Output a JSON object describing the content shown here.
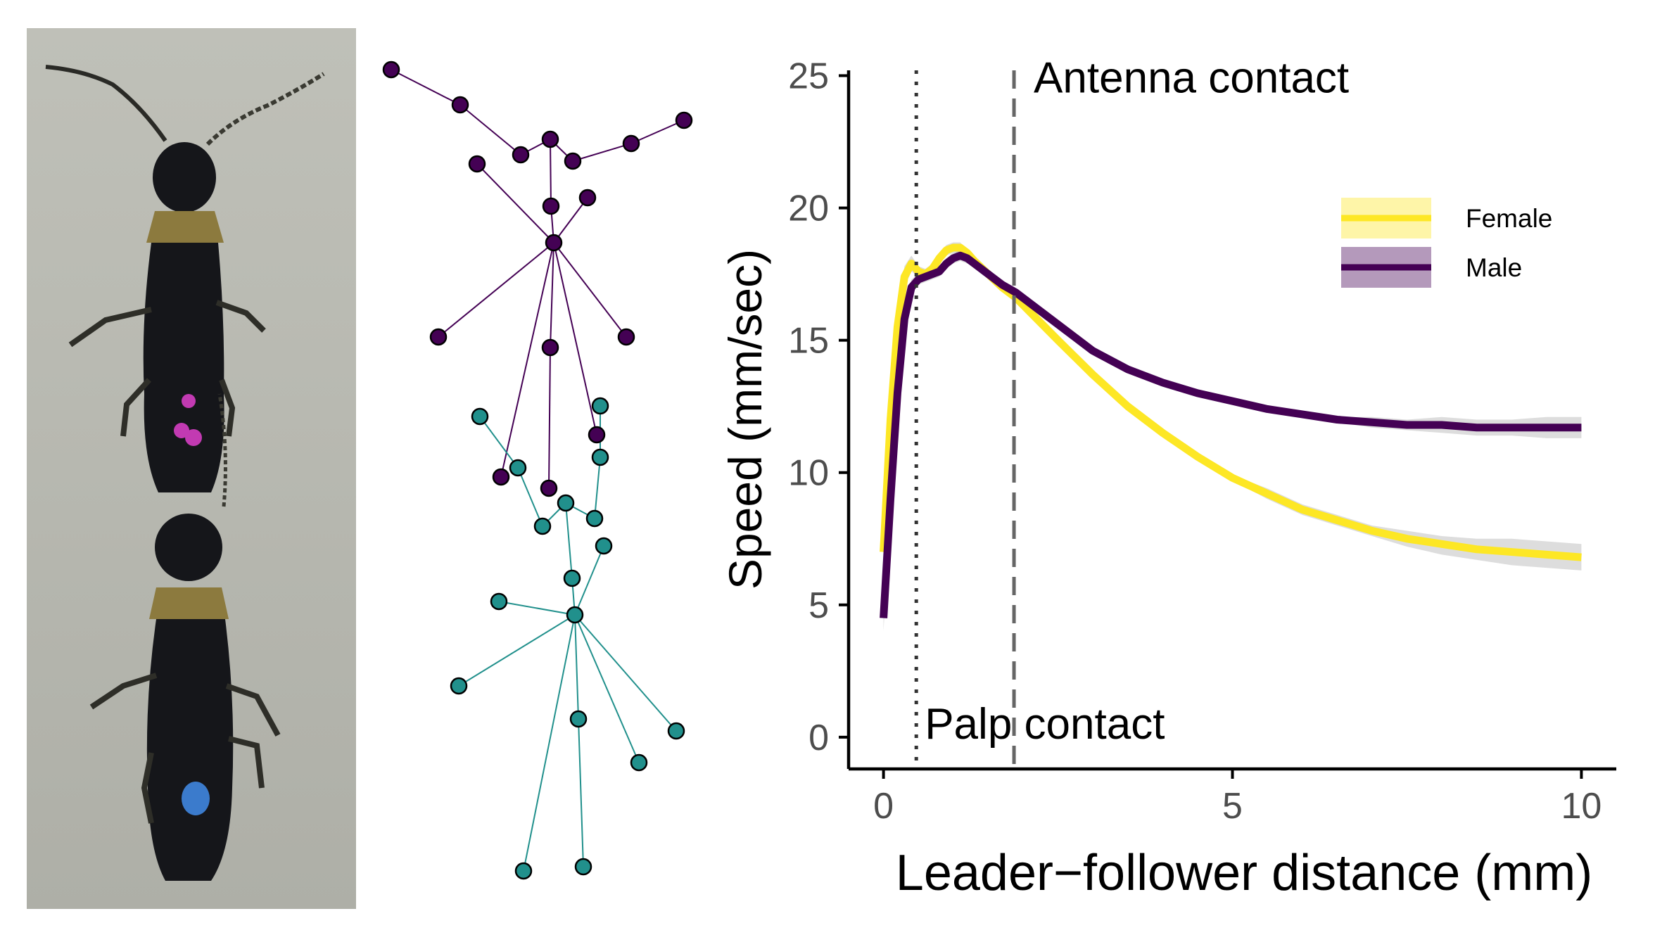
{
  "figure": {
    "panels": [
      "photo",
      "skeleton",
      "plot"
    ]
  },
  "photo": {
    "icon": "beetle-pair-photo",
    "colors": {
      "background": "#b9bab2",
      "body": "#15161a",
      "pronotum": "#8c7a3e",
      "mark_top": "#c23ab2",
      "mark_bottom": "#3b7bcc"
    }
  },
  "skeleton": {
    "icon": "pose-skeleton",
    "colors": {
      "leader": "#440154",
      "follower": "#21908c"
    }
  },
  "chart_data": {
    "type": "line",
    "title": "",
    "xlabel": "Leader−follower distance (mm)",
    "ylabel": "Speed (mm/sec)",
    "xlim": [
      -0.5,
      10.5
    ],
    "ylim": [
      -1.2,
      25.2
    ],
    "xticks": [
      0,
      5,
      10
    ],
    "yticks": [
      0,
      5,
      10,
      15,
      20,
      25
    ],
    "grid": false,
    "legend": "right",
    "series": [
      {
        "name": "Female",
        "color": "#fde725",
        "ribbon_color": "#fde725",
        "x": [
          0,
          0.1,
          0.2,
          0.3,
          0.4,
          0.5,
          0.6,
          0.7,
          0.8,
          0.9,
          1.0,
          1.1,
          1.2,
          1.3,
          1.5,
          1.7,
          1.9,
          2.5,
          3.0,
          3.5,
          4.0,
          4.5,
          5.0,
          5.5,
          6.0,
          6.5,
          7.0,
          7.5,
          8.0,
          8.5,
          9.0,
          9.5,
          10.0
        ],
        "y": [
          7.0,
          12.0,
          15.5,
          17.4,
          17.9,
          17.6,
          17.5,
          17.7,
          18.1,
          18.4,
          18.5,
          18.5,
          18.3,
          18.0,
          17.5,
          17.0,
          16.6,
          15.0,
          13.7,
          12.5,
          11.5,
          10.6,
          9.8,
          9.2,
          8.6,
          8.2,
          7.8,
          7.5,
          7.3,
          7.1,
          7.0,
          6.9,
          6.8
        ],
        "ribbon_lower": [
          6.4,
          11.6,
          15.1,
          17.0,
          17.6,
          17.4,
          17.3,
          17.5,
          17.9,
          18.2,
          18.3,
          18.3,
          18.2,
          17.9,
          17.4,
          16.9,
          16.5,
          14.9,
          13.6,
          12.4,
          11.4,
          10.5,
          9.7,
          9.0,
          8.4,
          8.0,
          7.6,
          7.2,
          6.9,
          6.7,
          6.5,
          6.4,
          6.3
        ],
        "ribbon_upper": [
          7.6,
          12.4,
          15.9,
          17.8,
          18.2,
          17.8,
          17.7,
          17.9,
          18.3,
          18.6,
          18.7,
          18.7,
          18.4,
          18.1,
          17.6,
          17.1,
          16.7,
          15.1,
          13.8,
          12.6,
          11.6,
          10.7,
          9.9,
          9.4,
          8.8,
          8.4,
          8.0,
          7.8,
          7.6,
          7.5,
          7.5,
          7.4,
          7.3
        ]
      },
      {
        "name": "Male",
        "color": "#440154",
        "ribbon_color": "#440154",
        "x": [
          0,
          0.1,
          0.2,
          0.3,
          0.4,
          0.5,
          0.6,
          0.7,
          0.8,
          0.9,
          1.0,
          1.1,
          1.2,
          1.3,
          1.5,
          1.7,
          1.9,
          2.5,
          3.0,
          3.5,
          4.0,
          4.5,
          5.0,
          5.5,
          6.0,
          6.5,
          7.0,
          7.5,
          8.0,
          8.5,
          9.0,
          9.5,
          10.0
        ],
        "y": [
          4.5,
          9.0,
          13.0,
          15.8,
          17.0,
          17.3,
          17.4,
          17.5,
          17.6,
          17.9,
          18.1,
          18.2,
          18.1,
          17.9,
          17.5,
          17.1,
          16.8,
          15.6,
          14.6,
          13.9,
          13.4,
          13.0,
          12.7,
          12.4,
          12.2,
          12.0,
          11.9,
          11.8,
          11.8,
          11.7,
          11.7,
          11.7,
          11.7
        ],
        "ribbon_lower": [
          4.0,
          8.6,
          12.6,
          15.4,
          16.7,
          17.1,
          17.2,
          17.3,
          17.4,
          17.7,
          17.9,
          18.0,
          17.9,
          17.8,
          17.4,
          17.0,
          16.7,
          15.5,
          14.5,
          13.8,
          13.3,
          12.9,
          12.6,
          12.3,
          12.1,
          11.9,
          11.7,
          11.6,
          11.5,
          11.4,
          11.4,
          11.3,
          11.3
        ],
        "ribbon_upper": [
          5.0,
          9.4,
          13.4,
          16.2,
          17.3,
          17.5,
          17.6,
          17.7,
          17.8,
          18.1,
          18.3,
          18.4,
          18.3,
          18.0,
          17.6,
          17.2,
          16.9,
          15.7,
          14.7,
          14.0,
          13.5,
          13.1,
          12.8,
          12.5,
          12.3,
          12.1,
          12.1,
          12.0,
          12.1,
          12.0,
          12.0,
          12.1,
          12.1
        ]
      }
    ],
    "vlines": [
      {
        "x": 0.47,
        "style": "dotted",
        "color": "#333333",
        "label": "Palp contact"
      },
      {
        "x": 1.87,
        "style": "dashed",
        "color": "#666666",
        "label": "Antenna contact"
      }
    ]
  }
}
